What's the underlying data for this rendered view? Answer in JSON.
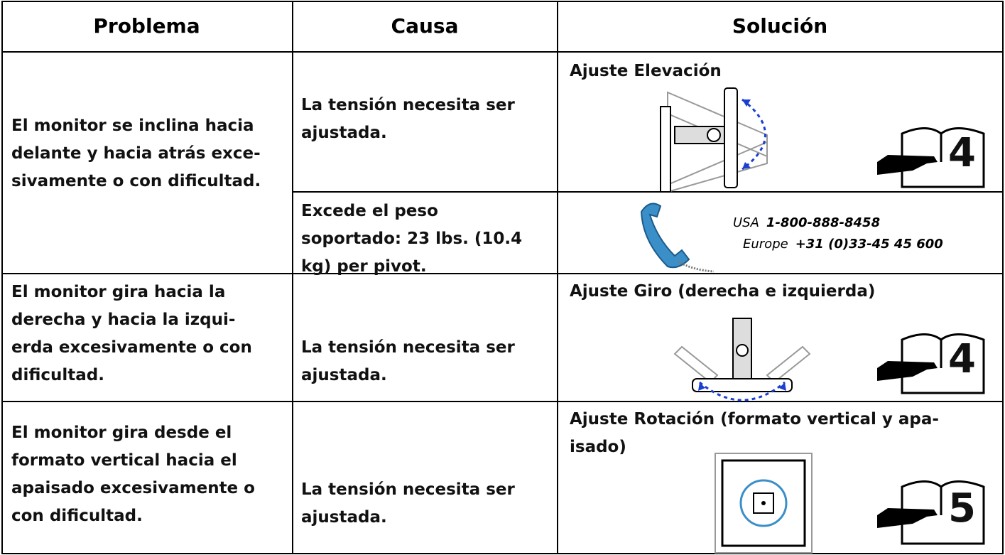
{
  "table": {
    "header": [
      "Problema",
      "Causa",
      "Solución"
    ],
    "rows": [
      {
        "problem": [
          "El monitor se inclina hacia",
          "delante y hacia atrás exce-",
          "sivamente o con dificultad."
        ],
        "causes": [
          {
            "cause": [
              "La tensión necesita ser",
              "ajustada."
            ],
            "solution": {
              "title": [
                "Ajuste Elevación"
              ],
              "page": "4"
            }
          },
          {
            "cause": [
              "Excede el peso",
              "soportado: 23 lbs. (10.4",
              "kg) per pivot."
            ],
            "solution": {
              "contacts": [
                {
                  "region": "USA",
                  "phone": "1-800-888-8458"
                },
                {
                  "region": "Europe",
                  "phone": "+31 (0)33-45 45 600"
                }
              ]
            }
          }
        ]
      },
      {
        "problem": [
          "El monitor gira hacia la",
          "derecha y hacia la izqui-",
          "erda excesivamente o con",
          "dificultad."
        ],
        "causes": [
          {
            "cause": [
              "La tensión necesita ser",
              "ajustada."
            ],
            "solution": {
              "title": [
                "Ajuste Giro (derecha e izquierda)"
              ],
              "page": "4"
            }
          }
        ]
      },
      {
        "problem": [
          "El monitor gira desde el",
          "formato vertical hacia el",
          "apaisado excesivamente o",
          "con dificultad."
        ],
        "causes": [
          {
            "cause": [
              "La tensión necesita ser",
              "ajustada."
            ],
            "solution": {
              "title": [
                "Ajuste Rotación (formato vertical y apa-",
                "isado)"
              ],
              "page": "5"
            }
          }
        ]
      }
    ]
  }
}
